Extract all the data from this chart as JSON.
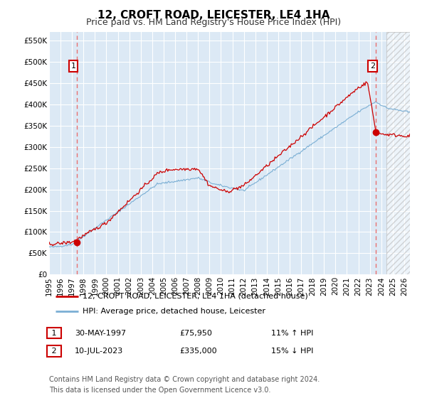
{
  "title": "12, CROFT ROAD, LEICESTER, LE4 1HA",
  "subtitle": "Price paid vs. HM Land Registry's House Price Index (HPI)",
  "ylim": [
    0,
    570000
  ],
  "yticks": [
    0,
    50000,
    100000,
    150000,
    200000,
    250000,
    300000,
    350000,
    400000,
    450000,
    500000,
    550000
  ],
  "ytick_labels": [
    "£0",
    "£50K",
    "£100K",
    "£150K",
    "£200K",
    "£250K",
    "£300K",
    "£350K",
    "£400K",
    "£450K",
    "£500K",
    "£550K"
  ],
  "xlim_start": 1995.0,
  "xlim_end": 2026.5,
  "fig_bg_color": "#ffffff",
  "plot_bg_color": "#dce9f5",
  "grid_color": "#ffffff",
  "hpi_line_color": "#7bafd4",
  "price_line_color": "#cc0000",
  "marker_color": "#cc0000",
  "dashed_line_color": "#e87070",
  "hatch_start": 2024.42,
  "legend_entries": [
    "12, CROFT ROAD, LEICESTER, LE4 1HA (detached house)",
    "HPI: Average price, detached house, Leicester"
  ],
  "sale1_date": 1997.41,
  "sale1_price": 75950,
  "sale1_label": "1",
  "sale1_display": "30-MAY-1997",
  "sale1_amount": "£75,950",
  "sale1_hpi": "11% ↑ HPI",
  "sale2_date": 2023.52,
  "sale2_price": 335000,
  "sale2_label": "2",
  "sale2_display": "10-JUL-2023",
  "sale2_amount": "£335,000",
  "sale2_hpi": "15% ↓ HPI",
  "footnote": "Contains HM Land Registry data © Crown copyright and database right 2024.\nThis data is licensed under the Open Government Licence v3.0.",
  "title_fontsize": 11,
  "subtitle_fontsize": 9,
  "tick_fontsize": 7.5,
  "legend_fontsize": 8,
  "footnote_fontsize": 7
}
